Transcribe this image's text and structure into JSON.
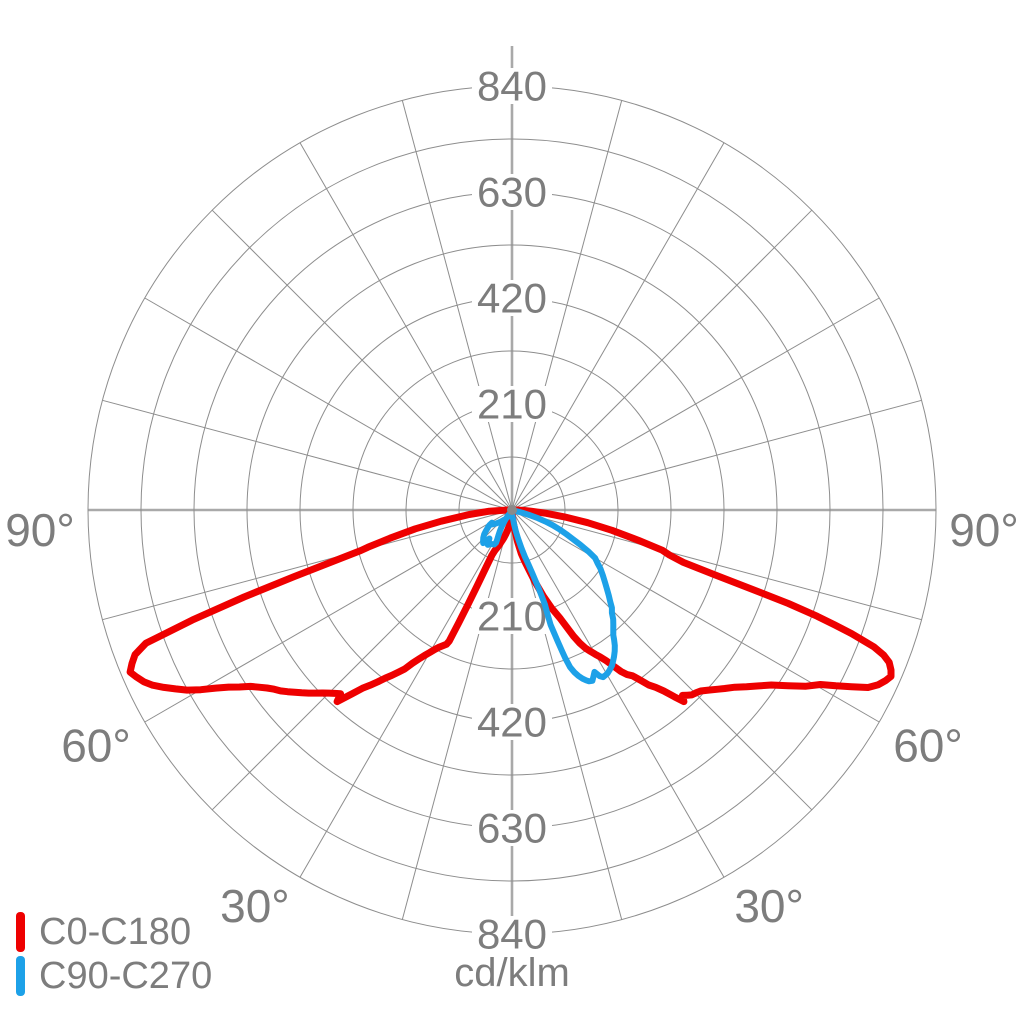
{
  "colors": {
    "background": "#ffffff",
    "grid": "#8d8d8d",
    "axis": "#a9a9a9",
    "text": "#7d7d7d",
    "red": "#ee0000",
    "blue": "#1da1e8"
  },
  "legend": {
    "items": [
      {
        "label": "C0-C180",
        "color": "#ee0000"
      },
      {
        "label": "C90-C270",
        "color": "#1da1e8"
      }
    ]
  },
  "chart_data": {
    "type": "polar",
    "subtype": "photometric-intensity-distribution",
    "units_label": "cd/klm",
    "radial_axis": {
      "tick_values": [
        210,
        420,
        630,
        840
      ],
      "ring_step": 105,
      "max": 840
    },
    "angular_axis": {
      "labels": [
        "90°",
        "60°",
        "30°"
      ],
      "label_angles_deg": [
        90,
        60,
        30
      ],
      "spoke_step_deg": 15,
      "zero_direction": "down"
    },
    "series": [
      {
        "name": "C0-C180",
        "color": "#ee0000",
        "paths": [
          [
            [
              -90,
              8
            ],
            [
              -87,
              45
            ],
            [
              -84,
              85
            ],
            [
              -81,
              142
            ],
            [
              -79,
              195
            ],
            [
              -77,
              248
            ],
            [
              -75.5,
              295
            ],
            [
              -75,
              310
            ],
            [
              -74,
              368
            ],
            [
              -73,
              452
            ],
            [
              -72,
              558
            ],
            [
              -71,
              670
            ],
            [
              -70,
              772
            ],
            [
              -69,
              800
            ],
            [
              -68,
              812
            ],
            [
              -67,
              822
            ],
            [
              -66,
              814
            ],
            [
              -65,
              805
            ],
            [
              -64,
              792
            ],
            [
              -63,
              774
            ],
            [
              -62,
              755
            ],
            [
              -61,
              736
            ],
            [
              -60,
              712
            ],
            [
              -59,
              685
            ],
            [
              -58,
              662
            ],
            [
              -57,
              644
            ],
            [
              -56,
              625
            ],
            [
              -55,
              612
            ],
            [
              -54,
              600
            ],
            [
              -53,
              590
            ],
            [
              -52,
              582
            ],
            [
              -51,
              572
            ],
            [
              -50,
              562
            ],
            [
              -49,
              552
            ],
            [
              -48,
              542
            ],
            [
              -47,
              532
            ],
            [
              -46,
              522
            ],
            [
              -45,
              513
            ],
            [
              -44,
              505
            ],
            [
              -43,
              498
            ],
            [
              -42.4,
              514
            ],
            [
              -41.8,
              500
            ],
            [
              -41,
              482
            ],
            [
              -40,
              461
            ],
            [
              -39,
              447
            ],
            [
              -38,
              432
            ],
            [
              -37,
              417
            ],
            [
              -36,
              405
            ],
            [
              -35,
              392
            ],
            [
              -34,
              380
            ],
            [
              -33,
              362
            ],
            [
              -32,
              348
            ],
            [
              -31,
              336
            ],
            [
              -30,
              326
            ],
            [
              -29,
              316
            ],
            [
              -28,
              308
            ],
            [
              -27,
              302
            ],
            [
              -26,
              296
            ],
            [
              -25.6,
              288
            ],
            [
              -25.3,
              248
            ],
            [
              -25,
              205
            ],
            [
              -24.7,
              165
            ],
            [
              -24.4,
              128
            ],
            [
              -24,
              98
            ],
            [
              -23,
              88
            ],
            [
              -22,
              82
            ],
            [
              -21,
              78
            ],
            [
              -20,
              73
            ],
            [
              -18,
              64
            ],
            [
              -16,
              56
            ],
            [
              -14,
              48
            ],
            [
              -12,
              40
            ],
            [
              -10,
              33
            ],
            [
              -8,
              26
            ],
            [
              -6,
              19
            ],
            [
              -4,
              13
            ],
            [
              -2,
              8
            ],
            [
              0,
              5
            ],
            [
              2,
              9
            ],
            [
              4,
              16
            ],
            [
              6,
              26
            ],
            [
              8,
              42
            ],
            [
              10,
              64
            ],
            [
              12,
              88
            ],
            [
              14,
              105
            ],
            [
              16,
              125
            ],
            [
              18,
              152
            ],
            [
              20,
              182
            ],
            [
              22,
              210
            ],
            [
              24,
              236
            ],
            [
              26,
              278
            ],
            [
              27,
              296
            ],
            [
              28,
              310
            ],
            [
              29,
              320
            ],
            [
              30,
              330
            ],
            [
              31,
              340
            ],
            [
              32,
              352
            ],
            [
              33,
              368
            ],
            [
              34,
              386
            ],
            [
              35,
              398
            ],
            [
              36,
              406
            ],
            [
              37,
              422
            ],
            [
              38,
              440
            ],
            [
              39,
              452
            ],
            [
              40,
              468
            ],
            [
              41,
              490
            ],
            [
              41.9,
              510
            ],
            [
              42.6,
              499
            ],
            [
              43.4,
              505
            ],
            [
              44.2,
              511
            ],
            [
              45.2,
              514
            ],
            [
              46.2,
              518
            ],
            [
              47.5,
              528
            ],
            [
              49,
              541
            ],
            [
              50,
              550
            ],
            [
              51.5,
              564
            ],
            [
              53,
              582
            ],
            [
              54.5,
              600
            ],
            [
              56,
              620
            ],
            [
              57.5,
              648
            ],
            [
              59,
              678
            ],
            [
              60.5,
              702
            ],
            [
              61.5,
              730
            ],
            [
              62.5,
              758
            ],
            [
              63.5,
              788
            ],
            [
              64.5,
              804
            ],
            [
              65.5,
              814
            ],
            [
              66.3,
              820
            ],
            [
              67.1,
              815
            ],
            [
              68,
              806
            ],
            [
              68.7,
              790
            ],
            [
              69.3,
              766
            ],
            [
              70,
              716
            ],
            [
              70.4,
              678
            ],
            [
              70.8,
              640
            ],
            [
              71.3,
              578
            ],
            [
              71.7,
              505
            ],
            [
              72.3,
              420
            ],
            [
              73,
              355
            ],
            [
              74,
              325
            ],
            [
              75,
              308
            ],
            [
              76.5,
              258
            ],
            [
              78.5,
              202
            ],
            [
              80.5,
              152
            ],
            [
              82.5,
              105
            ],
            [
              84.5,
              68
            ],
            [
              86.5,
              38
            ],
            [
              88,
              22
            ],
            [
              90,
              8
            ]
          ]
        ]
      },
      {
        "name": "C90-C270",
        "color": "#1da1e8",
        "paths": [
          [
            [
              -18,
              8
            ],
            [
              -28,
              14
            ],
            [
              -36,
              22
            ],
            [
              -44,
              32
            ],
            [
              -50,
              42
            ],
            [
              -55,
              50
            ],
            [
              -57.5,
              47
            ],
            [
              -56,
              54
            ],
            [
              -54.5,
              58
            ],
            [
              -51,
              67
            ],
            [
              -49,
              73
            ],
            [
              -46,
              79
            ],
            [
              -43,
              84
            ],
            [
              -41,
              87
            ],
            [
              -39.5,
              80
            ],
            [
              -38.4,
              72
            ],
            [
              -36.5,
              78
            ],
            [
              -34.8,
              84
            ],
            [
              -32.5,
              80
            ],
            [
              -30,
              78
            ],
            [
              -27.5,
              77
            ],
            [
              -26,
              72
            ],
            [
              -26.5,
              66
            ],
            [
              -28,
              58
            ],
            [
              -30,
              48
            ],
            [
              -32,
              38
            ],
            [
              -34,
              26
            ],
            [
              -36,
              14
            ],
            [
              -30,
              6
            ]
          ],
          [
            [
              5,
              12
            ],
            [
              8,
              26
            ],
            [
              10,
              42
            ],
            [
              12,
              58
            ],
            [
              14,
              78
            ],
            [
              15.5,
              96
            ],
            [
              16.8,
              112
            ],
            [
              17.8,
              132
            ],
            [
              18.4,
              150
            ],
            [
              18.8,
              164
            ],
            [
              19,
              178
            ],
            [
              19.2,
              198
            ],
            [
              18.8,
              220
            ],
            [
              18.6,
              240
            ],
            [
              18.9,
              258
            ],
            [
              19.2,
              276
            ],
            [
              19.5,
              296
            ],
            [
              19.8,
              312
            ],
            [
              20.3,
              332
            ],
            [
              21,
              344
            ],
            [
              21.8,
              354
            ],
            [
              22.7,
              362
            ],
            [
              23.5,
              368
            ],
            [
              24.2,
              372
            ],
            [
              25.2,
              374
            ],
            [
              26.2,
              366
            ],
            [
              27,
              360
            ],
            [
              27.8,
              372
            ],
            [
              28.6,
              377
            ],
            [
              29.5,
              376
            ],
            [
              30.3,
              375
            ],
            [
              31.5,
              371
            ],
            [
              32.8,
              366
            ],
            [
              33.8,
              360
            ],
            [
              34.8,
              354
            ],
            [
              36,
              346
            ],
            [
              37.2,
              337
            ],
            [
              38.2,
              327
            ],
            [
              39,
              319
            ],
            [
              40.2,
              311
            ],
            [
              41.5,
              303
            ],
            [
              42.8,
              295
            ],
            [
              44.2,
              284
            ],
            [
              45.6,
              277
            ],
            [
              47,
              266
            ],
            [
              48.5,
              256
            ],
            [
              50.2,
              245
            ],
            [
              52,
              234
            ],
            [
              54.2,
              222
            ],
            [
              56.5,
              210
            ],
            [
              58.2,
              199
            ],
            [
              60,
              190
            ],
            [
              61.5,
              172
            ],
            [
              63,
              152
            ],
            [
              64.5,
              133
            ],
            [
              66,
              118
            ],
            [
              67.8,
              102
            ],
            [
              69.5,
              86
            ],
            [
              71,
              70
            ],
            [
              72.5,
              54
            ],
            [
              73.8,
              38
            ],
            [
              74.8,
              22
            ],
            [
              75.5,
              10
            ]
          ]
        ]
      }
    ]
  }
}
